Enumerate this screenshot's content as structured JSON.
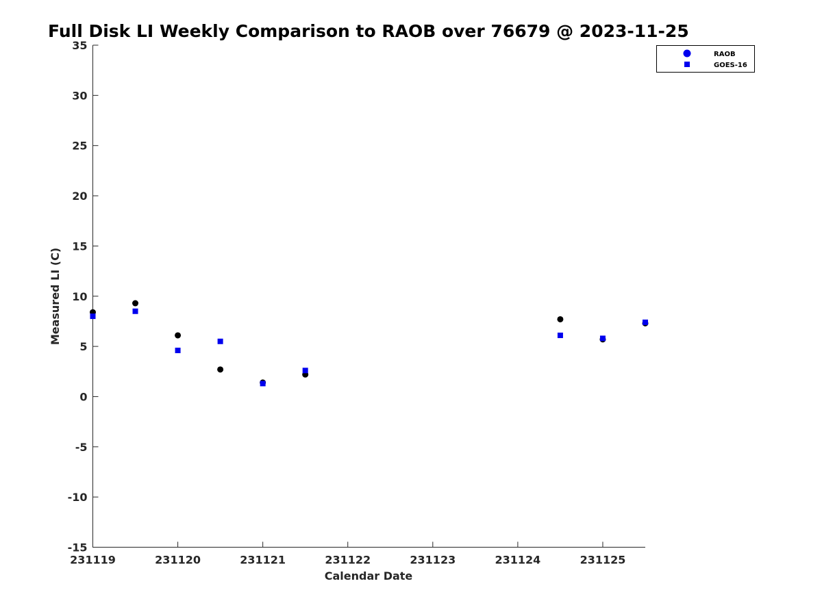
{
  "chart_data": {
    "type": "scatter",
    "title": "Full Disk LI Weekly Comparison to RAOB over 76679 @ 2023-11-25",
    "xlabel": "Calendar Date",
    "ylabel": "Measured LI (C)",
    "xlim": [
      0,
      6.5
    ],
    "ylim": [
      -15,
      35
    ],
    "x_ticks": [
      {
        "value": 0,
        "label": "231119"
      },
      {
        "value": 1,
        "label": "231120"
      },
      {
        "value": 2,
        "label": "231121"
      },
      {
        "value": 3,
        "label": "231122"
      },
      {
        "value": 4,
        "label": "231123"
      },
      {
        "value": 5,
        "label": "231124"
      },
      {
        "value": 6,
        "label": "231125"
      }
    ],
    "y_ticks": [
      {
        "value": 35,
        "label": "35"
      },
      {
        "value": 30,
        "label": "30"
      },
      {
        "value": 25,
        "label": "25"
      },
      {
        "value": 20,
        "label": "20"
      },
      {
        "value": 15,
        "label": "15"
      },
      {
        "value": 10,
        "label": "10"
      },
      {
        "value": 5,
        "label": "5"
      },
      {
        "value": 0,
        "label": "0"
      },
      {
        "value": -5,
        "label": "-5"
      },
      {
        "value": -10,
        "label": "-10"
      },
      {
        "value": -15,
        "label": "-15"
      }
    ],
    "legend_position": "top-right",
    "grid": false,
    "series": [
      {
        "name": "RAOB",
        "marker": "circle",
        "color": "#000000",
        "legend_color": "#0000ee",
        "x": [
          0,
          0.5,
          1,
          1.5,
          2,
          2.5,
          5.5,
          6,
          6.5
        ],
        "y": [
          8.4,
          9.3,
          6.1,
          2.7,
          1.4,
          2.2,
          7.7,
          5.7,
          7.3
        ]
      },
      {
        "name": "GOES-16",
        "marker": "square",
        "color": "#0000ee",
        "legend_color": "#0000ee",
        "x": [
          0,
          0.5,
          1,
          1.5,
          2,
          2.5,
          5.5,
          6,
          6.5
        ],
        "y": [
          8.0,
          8.5,
          4.6,
          5.5,
          1.3,
          2.6,
          6.1,
          5.8,
          7.4
        ]
      }
    ]
  }
}
